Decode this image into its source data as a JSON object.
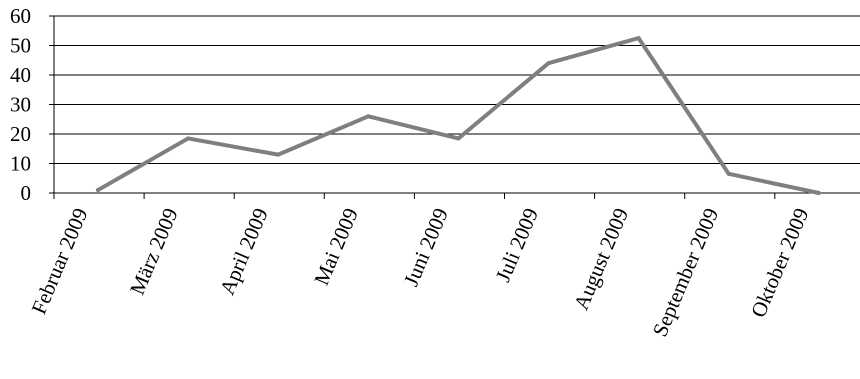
{
  "chart_data": {
    "type": "line",
    "title": "",
    "xlabel": "",
    "ylabel": "",
    "categories": [
      "Februar 2009",
      "März 2009",
      "April 2009",
      "Mai 2009",
      "Juni 2009",
      "Juli 2009",
      "August 2009",
      "September 2009",
      "Oktober 2009"
    ],
    "series": [
      {
        "values": [
          1,
          18.5,
          13,
          26,
          18.5,
          44,
          52.5,
          6.5,
          0
        ],
        "color": "#7f7f7f"
      }
    ],
    "ylim": [
      0,
      60
    ],
    "yticks": [
      0,
      10,
      20,
      30,
      40,
      50,
      60
    ],
    "grid": true,
    "legend": "none"
  }
}
